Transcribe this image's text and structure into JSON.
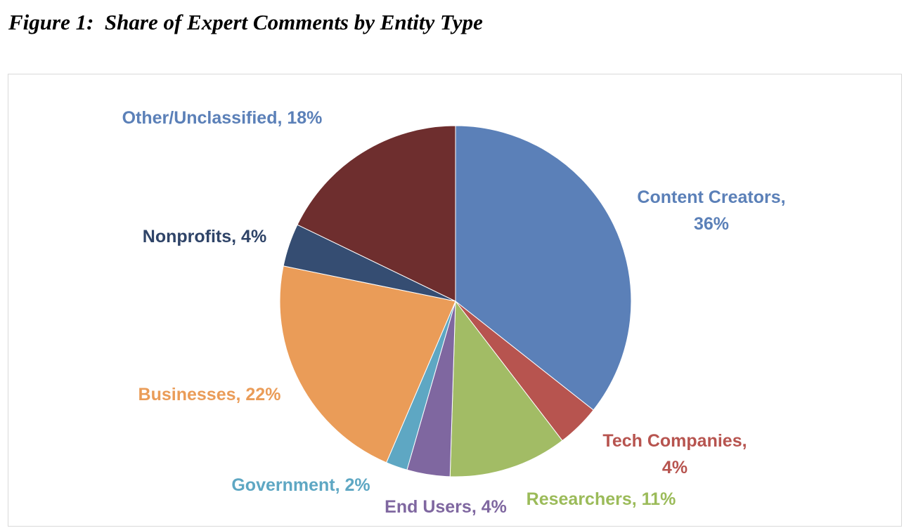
{
  "figure": {
    "title": "Figure 1:  Share of Expert Comments by Entity Type"
  },
  "chart_data": {
    "type": "pie",
    "title": "Share of Expert Comments by Entity Type",
    "legend": "none",
    "slices": [
      {
        "name": "Content Creators",
        "value": 36,
        "color": "#5B80B8",
        "label_color": "#5B80B8",
        "label_lines": [
          "Content Creators,",
          "36%"
        ]
      },
      {
        "name": "Tech Companies",
        "value": 4,
        "color": "#B7544F",
        "label_color": "#B7544F",
        "label_lines": [
          "Tech Companies,",
          "4%"
        ]
      },
      {
        "name": "Researchers",
        "value": 11,
        "color": "#A2BC65",
        "label_color": "#9BBB59",
        "label_lines": [
          "Researchers, 11%"
        ]
      },
      {
        "name": "End Users",
        "value": 4,
        "color": "#7F67A0",
        "label_color": "#7F67A0",
        "label_lines": [
          "End Users, 4%"
        ]
      },
      {
        "name": "Government",
        "value": 2,
        "color": "#5EA7C3",
        "label_color": "#5EA7C3",
        "label_lines": [
          "Government, 2%"
        ]
      },
      {
        "name": "Businesses",
        "value": 22,
        "color": "#EA9C58",
        "label_color": "#EA9C58",
        "label_lines": [
          "Businesses, 22%"
        ]
      },
      {
        "name": "Nonprofits",
        "value": 4,
        "color": "#354D72",
        "label_color": "#2F4468",
        "label_lines": [
          "Nonprofits, 4%"
        ]
      },
      {
        "name": "Other/Unclassified",
        "value": 18,
        "color": "#6E2E2E",
        "label_color": "#5B80B8",
        "label_lines": [
          "Other/Unclassified, 18%"
        ]
      }
    ]
  }
}
